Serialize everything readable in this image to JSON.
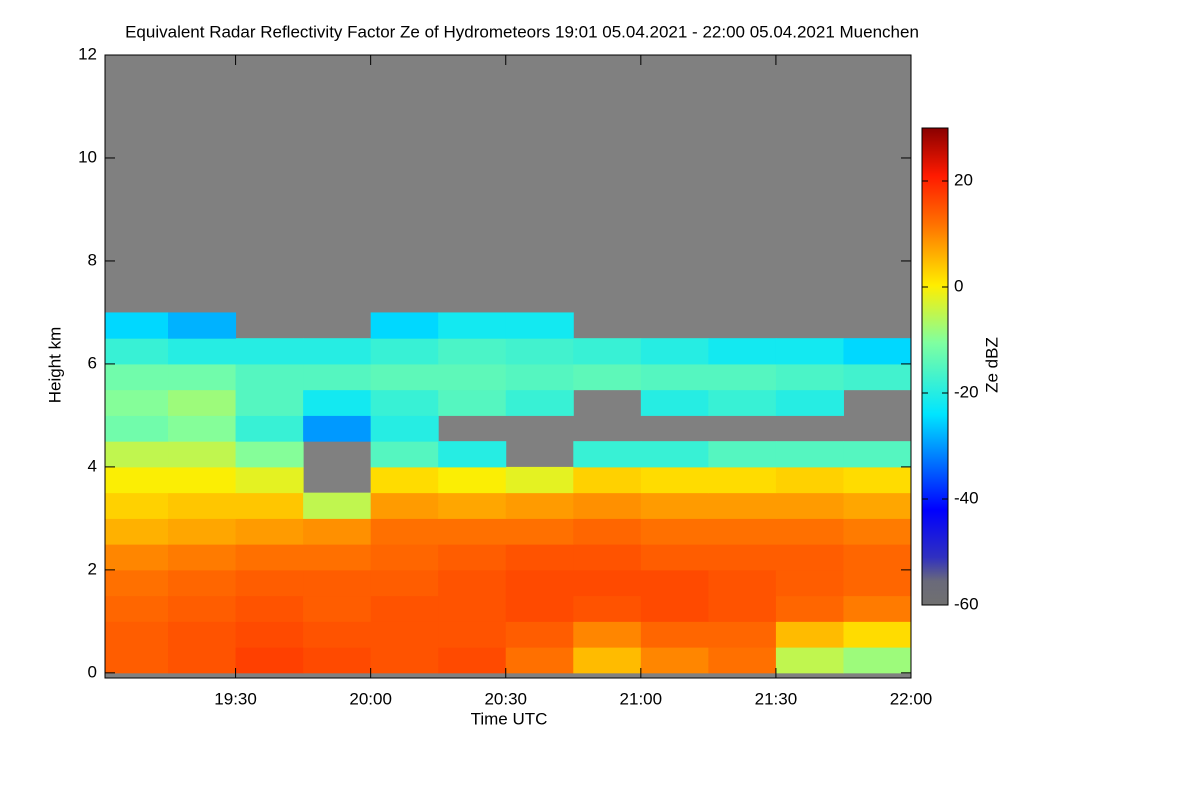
{
  "chart_data": {
    "type": "heatmap",
    "title": "Equivalent Radar Reflectivity Factor Ze of Hydrometeors   19:01 05.04.2021 - 22:00 05.04.2021 Muenchen",
    "xlabel": "Time UTC",
    "ylabel": "Height km",
    "colorbar_label": "Ze dBZ",
    "xlim": [
      19.0167,
      22.0
    ],
    "ylim": [
      -0.1,
      12
    ],
    "xticks": [
      {
        "value": 19.5,
        "label": "19:30"
      },
      {
        "value": 20.0,
        "label": "20:00"
      },
      {
        "value": 20.5,
        "label": "20:30"
      },
      {
        "value": 21.0,
        "label": "21:00"
      },
      {
        "value": 21.5,
        "label": "21:30"
      },
      {
        "value": 22.0,
        "label": "22:00"
      }
    ],
    "yticks": [
      0,
      2,
      4,
      6,
      8,
      10,
      12
    ],
    "clim": [
      -60,
      30
    ],
    "cticks": [
      -60,
      -40,
      -20,
      0,
      20
    ],
    "x": [
      19.125,
      19.375,
      19.625,
      19.875,
      20.125,
      20.375,
      20.625,
      20.875,
      21.125,
      21.375,
      21.625,
      21.875
    ],
    "y": [
      0.25,
      0.75,
      1.25,
      1.75,
      2.25,
      2.75,
      3.25,
      3.75,
      4.25,
      4.75,
      5.25,
      5.75,
      6.25,
      6.75
    ],
    "z": [
      [
        14,
        15,
        17,
        16,
        15,
        16,
        12,
        5,
        10,
        12,
        -5,
        -8
      ],
      [
        14,
        15,
        16,
        15,
        15,
        15,
        14,
        10,
        13,
        13,
        5,
        2
      ],
      [
        13,
        14,
        15,
        14,
        15,
        15,
        16,
        15,
        16,
        15,
        13,
        11
      ],
      [
        12,
        13,
        14,
        14,
        14,
        15,
        16,
        16,
        16,
        15,
        14,
        13
      ],
      [
        10,
        11,
        12,
        12,
        13,
        14,
        15,
        15,
        14,
        14,
        14,
        13
      ],
      [
        6,
        7,
        8,
        9,
        12,
        12,
        12,
        13,
        12,
        12,
        12,
        11
      ],
      [
        3,
        4,
        4,
        -5,
        8,
        7,
        8,
        9,
        8,
        8,
        8,
        7
      ],
      [
        0,
        0,
        -2,
        null,
        2,
        0,
        -2,
        3,
        2,
        2,
        3,
        2
      ],
      [
        -5,
        -5,
        -10,
        null,
        -15,
        -20,
        null,
        -18,
        -18,
        -15,
        -15,
        -15
      ],
      [
        -12,
        -10,
        -18,
        -30,
        -20,
        null,
        null,
        null,
        null,
        null,
        null,
        null
      ],
      [
        -10,
        -8,
        -15,
        -22,
        -18,
        -15,
        -18,
        null,
        -20,
        -18,
        -20,
        null
      ],
      [
        -12,
        -12,
        -15,
        -15,
        -14,
        -14,
        -15,
        -14,
        -15,
        -15,
        -16,
        -17
      ],
      [
        -18,
        -20,
        -20,
        -20,
        -18,
        -16,
        -17,
        -18,
        -20,
        -22,
        -22,
        -25
      ],
      [
        -25,
        -28,
        null,
        null,
        -25,
        -22,
        -22,
        null,
        null,
        null,
        null,
        null
      ]
    ],
    "background_color": "#808080"
  }
}
